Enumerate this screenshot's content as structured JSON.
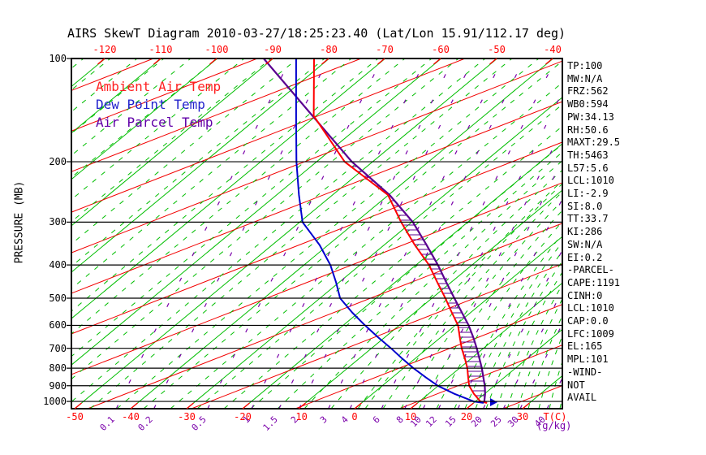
{
  "title": "AIRS SkewT Diagram 2010-03-27/18:25:23.40 (Lat/Lon 15.91/112.17 deg)",
  "legend": {
    "items": [
      {
        "label": "Ambient Air Temp",
        "color": "#ff2020"
      },
      {
        "label": "Dew Point Temp",
        "color": "#2222cc"
      },
      {
        "label": "Air Parcel Temp",
        "color": "#6000a8"
      }
    ]
  },
  "axes": {
    "pressure_label": "PRESSURE (MB)",
    "pressure_ticks": [
      100,
      200,
      300,
      400,
      500,
      600,
      700,
      800,
      900,
      1000
    ],
    "top_temp_ticks": [
      -120,
      -110,
      -100,
      -90,
      -80,
      -70,
      -60,
      -50,
      -40
    ],
    "bottom_temp_ticks": [
      -50,
      -40,
      -30,
      -20,
      -10,
      0,
      10,
      20,
      30
    ],
    "bottom_unit": "T(C)",
    "mixing_unit": "(g/kg)",
    "mixing_ratio_ticks": [
      0.1,
      0.2,
      0.5,
      1,
      1.5,
      2,
      3,
      4,
      6,
      8,
      10,
      12,
      15,
      20,
      25,
      30,
      40
    ]
  },
  "stats": [
    "TP:100",
    "MW:N/A",
    "FRZ:562",
    "WB0:594",
    "PW:34.13",
    "RH:50.6",
    "MAXT:29.5",
    "TH:5463",
    "L57:5.6",
    "LCL:1010",
    "LI:-2.9",
    "SI:8.0",
    "TT:33.7",
    "KI:286",
    "SW:N/A",
    "EI:0.2",
    "-PARCEL-",
    "CAPE:1191",
    "CINH:0",
    "LCL:1010",
    "CAP:0.0",
    "LFC:1009",
    "EL:165",
    "MPL:101",
    "-WIND-",
    "NOT",
    "AVAIL"
  ],
  "colors": {
    "isotherm": "#00be00",
    "dry_adiabat": "#f20000",
    "moist_adiabat": "#00be00",
    "mixing_ratio": "#7a00aa",
    "ambient": "#ff0000",
    "dew_point": "#0000ce",
    "parcel": "#5a0090",
    "hatch": "#5a0090",
    "axis": "#000000",
    "temp_label": "#ff0000"
  },
  "chart_data": {
    "type": "line",
    "title": "AIRS SkewT Diagram 2010-03-27/18:25:23.40 (Lat/Lon 15.91/112.17 deg)",
    "x_axis": {
      "label": "T(C)",
      "bottom_range": [
        -50,
        33
      ],
      "top_range": [
        -120,
        -40
      ],
      "skewed": true
    },
    "y_axis": {
      "label": "PRESSURE (MB)",
      "scale": "log",
      "range": [
        100,
        1050
      ]
    },
    "isotherm_spacing_c": 10,
    "mixing_ratio_lines_g_per_kg": [
      0.1,
      0.2,
      0.5,
      1,
      1.5,
      2,
      3,
      4,
      6,
      8,
      10,
      12,
      15,
      20,
      25,
      30,
      40
    ],
    "series": [
      {
        "name": "Ambient Air Temp",
        "units": {
          "p": "mb",
          "t": "C"
        },
        "points": [
          [
            100,
            -82.7
          ],
          [
            147,
            -70.4
          ],
          [
            200,
            -55.0
          ],
          [
            250,
            -40.1
          ],
          [
            300,
            -31.9
          ],
          [
            350,
            -24.5
          ],
          [
            400,
            -17.7
          ],
          [
            450,
            -12.4
          ],
          [
            500,
            -7.6
          ],
          [
            550,
            -3.4
          ],
          [
            600,
            0.5
          ],
          [
            650,
            3.4
          ],
          [
            700,
            6.1
          ],
          [
            750,
            8.9
          ],
          [
            800,
            11.4
          ],
          [
            850,
            13.5
          ],
          [
            900,
            15.5
          ],
          [
            950,
            18.1
          ],
          [
            1000,
            20.9
          ],
          [
            1010,
            22.4
          ]
        ]
      },
      {
        "name": "Dew Point Temp",
        "units": {
          "p": "mb",
          "t": "C"
        },
        "points": [
          [
            100,
            -85.9
          ],
          [
            150,
            -72.9
          ],
          [
            200,
            -63.6
          ],
          [
            250,
            -56.0
          ],
          [
            300,
            -49.5
          ],
          [
            350,
            -41.5
          ],
          [
            400,
            -35.3
          ],
          [
            450,
            -30.5
          ],
          [
            500,
            -26.4
          ],
          [
            550,
            -21.2
          ],
          [
            600,
            -16.1
          ],
          [
            650,
            -11.2
          ],
          [
            700,
            -6.5
          ],
          [
            750,
            -2.3
          ],
          [
            800,
            1.8
          ],
          [
            850,
            5.9
          ],
          [
            900,
            9.9
          ],
          [
            950,
            14.6
          ],
          [
            1000,
            19.7
          ],
          [
            1010,
            21.8
          ]
        ]
      },
      {
        "name": "Air Parcel Temp",
        "units": {
          "p": "mb",
          "t": "C"
        },
        "points": [
          [
            100,
            -91.7
          ],
          [
            150,
            -69.5
          ],
          [
            200,
            -53.7
          ],
          [
            250,
            -39.8
          ],
          [
            300,
            -29.8
          ],
          [
            350,
            -22.4
          ],
          [
            400,
            -16.1
          ],
          [
            450,
            -10.8
          ],
          [
            500,
            -6.0
          ],
          [
            550,
            -1.6
          ],
          [
            600,
            2.4
          ],
          [
            650,
            5.8
          ],
          [
            700,
            8.8
          ],
          [
            750,
            11.5
          ],
          [
            800,
            14.0
          ],
          [
            850,
            16.2
          ],
          [
            900,
            18.3
          ],
          [
            950,
            20.1
          ],
          [
            1000,
            21.6
          ],
          [
            1010,
            22.3
          ]
        ]
      }
    ],
    "cape_hatched_between": [
      "Ambient Air Temp",
      "Air Parcel Temp"
    ]
  }
}
